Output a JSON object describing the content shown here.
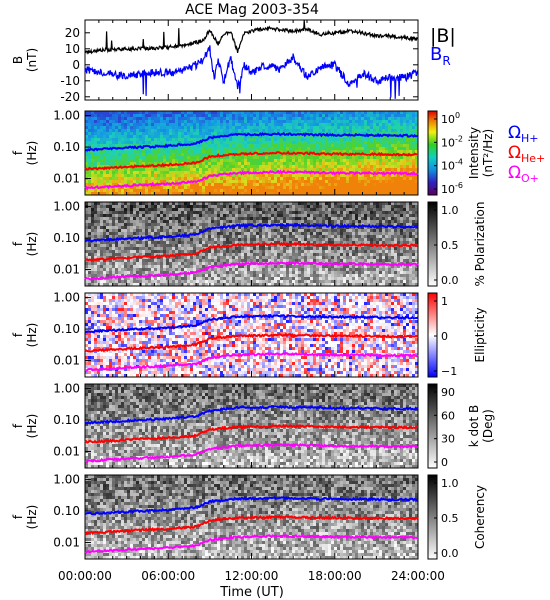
{
  "figure": {
    "title": "ACE Mag 2003-354",
    "xlabel": "Time (UT)",
    "xticks": [
      "00:00:00",
      "06:00:00",
      "12:00:00",
      "18:00:00",
      "24:00:00"
    ]
  },
  "colors": {
    "B_total": "#000000",
    "B_R": "#0000ff",
    "H+": "#0000ff",
    "He+": "#ff0000",
    "O+": "#ff00ff"
  },
  "legend": {
    "B_total": "|B|",
    "B_R_main": "B",
    "B_R_sub": "R",
    "omega": "Ω",
    "H_sub": "H+",
    "He_sub": "He+",
    "O_sub": "O+"
  },
  "panels": [
    {
      "key": "mag",
      "ylabel1": "B",
      "ylabel2": "(nT)",
      "yticks": [
        "20",
        "10",
        "0",
        "-10",
        "-20"
      ]
    },
    {
      "key": "intensity",
      "ylabel1": "f",
      "ylabel2": "(Hz)",
      "yticks": [
        "1.00",
        "0.10",
        "0.01"
      ],
      "cbar_label1": "Intensity",
      "cbar_label2": "(nT²/Hz)",
      "cbar_ticks": [
        {
          "base": "10",
          "exp": "0"
        },
        {
          "base": "10",
          "exp": "-2"
        },
        {
          "base": "10",
          "exp": "-4"
        },
        {
          "base": "10",
          "exp": "-6"
        }
      ]
    },
    {
      "key": "polarization",
      "ylabel1": "f",
      "ylabel2": "(Hz)",
      "yticks": [
        "1.00",
        "0.10",
        "0.01"
      ],
      "cbar_label1": "% Polarization",
      "cbar_label2": "",
      "cbar_ticks": [
        "1.0",
        "0.5",
        "0.0"
      ]
    },
    {
      "key": "ellipticity",
      "ylabel1": "f",
      "ylabel2": "(Hz)",
      "yticks": [
        "1.00",
        "0.10",
        "0.01"
      ],
      "cbar_label1": "Ellipticity",
      "cbar_label2": "",
      "cbar_ticks": [
        "1",
        "0",
        "−1"
      ]
    },
    {
      "key": "kdotb",
      "ylabel1": "f",
      "ylabel2": "(Hz)",
      "yticks": [
        "1.00",
        "0.10",
        "0.01"
      ],
      "cbar_label1": "k dot B",
      "cbar_label2": "(Deg)",
      "cbar_ticks": [
        "90",
        "60",
        "30",
        "0"
      ]
    },
    {
      "key": "coherency",
      "ylabel1": "f",
      "ylabel2": "(Hz)",
      "yticks": [
        "1.00",
        "0.10",
        "0.01"
      ],
      "cbar_label1": "Coherency",
      "cbar_label2": "",
      "cbar_ticks": [
        "1.0",
        "0.5",
        "0.0"
      ]
    }
  ],
  "chart_data": [
    {
      "type": "line",
      "x_unit": "hours UT",
      "xlim": [
        0,
        24
      ],
      "ylim": [
        -22,
        28
      ],
      "ylabel": "B (nT)",
      "series": [
        {
          "name": "|B|",
          "color": "#000000",
          "x": [
            0,
            1,
            2,
            3,
            4,
            5,
            6,
            7,
            8,
            8.5,
            9,
            9.3,
            9.6,
            10,
            10.5,
            11,
            11.5,
            12,
            13,
            14,
            15,
            16,
            17,
            18,
            19,
            20,
            21,
            22,
            23,
            24
          ],
          "y": [
            8,
            9,
            9.5,
            10,
            10,
            10.5,
            11,
            12,
            14,
            15,
            22,
            17,
            13,
            19,
            21,
            8,
            20,
            21,
            23,
            22,
            21,
            22,
            19,
            20,
            21,
            20,
            18,
            18,
            17,
            16
          ]
        },
        {
          "name": "B_R",
          "color": "#0000ff",
          "x": [
            0,
            1,
            2,
            3,
            4,
            5,
            6,
            7,
            8,
            8.5,
            9,
            9.3,
            9.6,
            10,
            10.5,
            11,
            11.5,
            12,
            13,
            14,
            15,
            16,
            17,
            18,
            19,
            20,
            21,
            22,
            23,
            24
          ],
          "y": [
            -3,
            -4,
            -6,
            -7,
            -6,
            -5,
            -5,
            -4,
            0,
            3,
            10,
            -8,
            2,
            -10,
            5,
            -15,
            0,
            -5,
            0,
            -3,
            5,
            -8,
            -2,
            0,
            -12,
            -5,
            -10,
            -8,
            -8,
            -5
          ]
        }
      ]
    },
    {
      "type": "heatmap",
      "title": "Intensity",
      "x_unit": "hours UT",
      "xlim": [
        0,
        24
      ],
      "y_scale": "log",
      "ylim": [
        0.003,
        1.4
      ],
      "colormap": "rainbow",
      "colorbar_scale": "log",
      "colorbar_range": [
        1e-06,
        1
      ],
      "series": [
        {
          "name": "Ω_H+",
          "color": "#0000ff",
          "x": [
            0,
            2,
            4,
            6,
            8,
            9,
            10,
            11,
            12,
            14,
            16,
            18,
            20,
            22,
            24
          ],
          "y": [
            0.08,
            0.09,
            0.1,
            0.11,
            0.13,
            0.2,
            0.22,
            0.25,
            0.25,
            0.26,
            0.25,
            0.24,
            0.24,
            0.23,
            0.23
          ]
        },
        {
          "name": "Ω_He+",
          "color": "#ff0000",
          "x": [
            0,
            2,
            4,
            6,
            8,
            9,
            10,
            11,
            12,
            14,
            16,
            18,
            20,
            22,
            24
          ],
          "y": [
            0.02,
            0.022,
            0.025,
            0.027,
            0.032,
            0.05,
            0.055,
            0.06,
            0.062,
            0.065,
            0.063,
            0.06,
            0.06,
            0.058,
            0.058
          ]
        },
        {
          "name": "Ω_O+",
          "color": "#ff00ff",
          "x": [
            0,
            2,
            4,
            6,
            8,
            9,
            10,
            11,
            12,
            14,
            16,
            18,
            20,
            22,
            24
          ],
          "y": [
            0.005,
            0.0056,
            0.0062,
            0.0068,
            0.008,
            0.012,
            0.0138,
            0.015,
            0.0155,
            0.0162,
            0.0158,
            0.015,
            0.015,
            0.0145,
            0.0145
          ]
        }
      ]
    },
    {
      "type": "heatmap",
      "title": "% Polarization",
      "xlim": [
        0,
        24
      ],
      "y_scale": "log",
      "ylim": [
        0.003,
        1.4
      ],
      "colormap": "grayscale",
      "colorbar_range": [
        0,
        1
      ]
    },
    {
      "type": "heatmap",
      "title": "Ellipticity",
      "xlim": [
        0,
        24
      ],
      "y_scale": "log",
      "ylim": [
        0.003,
        1.4
      ],
      "colormap": "blue-white-red",
      "colorbar_range": [
        -1,
        1
      ]
    },
    {
      "type": "heatmap",
      "title": "k dot B",
      "xlim": [
        0,
        24
      ],
      "y_scale": "log",
      "ylim": [
        0.003,
        1.4
      ],
      "colormap": "grayscale",
      "colorbar_range": [
        0,
        90
      ]
    },
    {
      "type": "heatmap",
      "title": "Coherency",
      "xlim": [
        0,
        24
      ],
      "y_scale": "log",
      "ylim": [
        0.003,
        1.4
      ],
      "colormap": "grayscale",
      "colorbar_range": [
        0,
        1
      ]
    }
  ]
}
